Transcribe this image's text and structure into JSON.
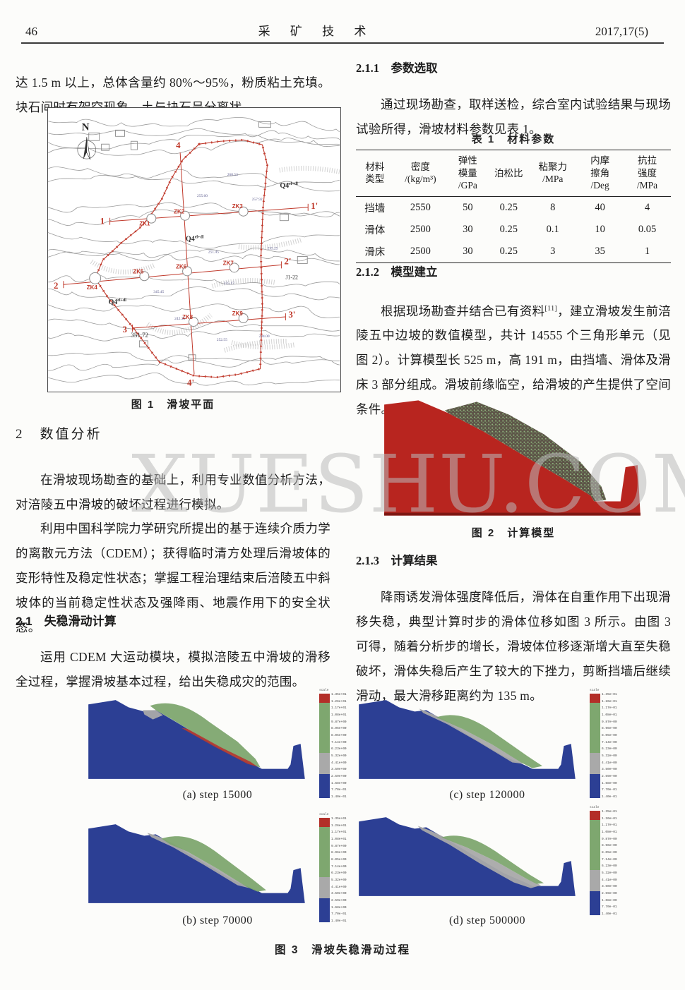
{
  "header": {
    "page_number": "46",
    "journal_title": "采 矿 技 术",
    "issue": "2017,17(5)"
  },
  "watermark": "XUESHU.COM",
  "left_column": {
    "intro_paragraph": "达 1.5 m 以上，总体含量约 80%～95%，粉质粘土充填。块石间时有架空现象，土与块石呈分离状。",
    "figure1": {
      "caption": "图 1　滑坡平面",
      "north_label": "N",
      "section_labels": [
        "1",
        "1'",
        "2",
        "2'",
        "3",
        "3'",
        "4",
        "4'"
      ],
      "borehole_labels": [
        "ZK1",
        "ZK2",
        "ZK3",
        "ZK4",
        "ZK5",
        "ZK6",
        "ZK7",
        "ZK8",
        "ZK9"
      ],
      "annotation_q4": "Q4",
      "annotation_q4_sup": "el+dl",
      "annotation_elev": "351.72",
      "annotation_j": "J1-22",
      "elevation_labels": [
        "255.60",
        "268.53",
        "257.92",
        "251.45",
        "235.25",
        "225.17",
        "345.45",
        "242.35",
        "252.55",
        "234.00"
      ]
    },
    "section2_heading": "2　数值分析",
    "para1": "在滑坡现场勘查的基础上，利用专业数值分析方法，对涪陵五中滑坡的破坏过程进行模拟。",
    "para2": "利用中国科学院力学研究所提出的基于连续介质力学的离散元方法（CDEM）；获得临时清方处理后滑坡体的变形特性及稳定性状态；掌握工程治理结束后涪陵五中斜坡体的当前稳定性状态及强降雨、地震作用下的安全状态。",
    "section21_heading": "2.1　失稳滑动计算",
    "para3": "运用 CDEM 大运动模块，模拟涪陵五中滑坡的滑移全过程，掌握滑坡基本过程，给出失稳成灾的范围。"
  },
  "right_column": {
    "section211_heading": "2.1.1　参数选取",
    "para1": "通过现场勘查，取样送检，综合室内试验结果与现场试验所得，滑坡材料参数见表 1。",
    "table1": {
      "caption": "表 1　材料参数",
      "headers": [
        "材料\n类型",
        "密度\n/(kg/m³)",
        "弹性\n模量\n/GPa",
        "泊松比",
        "粘聚力\n/MPa",
        "内摩\n擦角\n/Deg",
        "抗拉\n强度\n/MPa"
      ],
      "rows": [
        [
          "挡墙",
          "2550",
          "50",
          "0.25",
          "8",
          "40",
          "4"
        ],
        [
          "滑体",
          "2500",
          "30",
          "0.25",
          "0.1",
          "10",
          "0.05"
        ],
        [
          "滑床",
          "2500",
          "30",
          "0.25",
          "3",
          "35",
          "1"
        ]
      ]
    },
    "section212_heading": "2.1.2　模型建立",
    "para2_before_ref": "根据现场勘查并结合已有资料",
    "para2_ref": "[11]",
    "para2_after_ref": "，建立滑坡发生前涪陵五中边坡的数值模型，共计 14555 个三角形单元（见图 2）。计算模型长 525 m，高 191 m，由挡墙、滑体及滑床 3 部分组成。滑坡前缘临空，给滑坡的产生提供了空间条件。",
    "figure2_caption": "图 2　计算模型",
    "section213_heading": "2.1.3　计算结果",
    "para3": "降雨诱发滑体强度降低后，滑体在自重作用下出现滑移失稳，典型计算时步的滑体位移如图 3 所示。由图 3 可得，随着分析步的增长，滑坡体位移逐渐增大直至失稳破坏，滑体失稳后产生了较大的下挫力，剪断挡墙后继续滑动，最大滑移距离约为 135 m。"
  },
  "figure3": {
    "caption": "图 3　滑坡失稳滑动过程",
    "colorbar_title": "scale",
    "colorbar_labels": [
      "1.35e+01",
      "1.26e+01",
      "1.17e+01",
      "1.08e+01",
      "9.87e+00",
      "8.96e+00",
      "8.05e+00",
      "7.14e+00",
      "6.23e+00",
      "5.32e+00",
      "4.41e+00",
      "3.50e+00",
      "2.59e+00",
      "1.68e+00",
      "7.70e-01",
      "1.40e-01"
    ],
    "subfigures": [
      {
        "id": "a",
        "label": "(a) step 15000"
      },
      {
        "id": "c",
        "label": "(c) step 120000"
      },
      {
        "id": "b",
        "label": "(b) step 70000"
      },
      {
        "id": "d",
        "label": "(d) step 500000"
      }
    ]
  },
  "colors": {
    "model_red": "#b8251f",
    "slide_body_brown": "#5d5448",
    "speckle_green": "#8fb57e",
    "bed_blue": "#2c3f94",
    "band_green": "#7ea76f",
    "band_gray": "#a9a9a9",
    "map_red": "#c0392b"
  }
}
